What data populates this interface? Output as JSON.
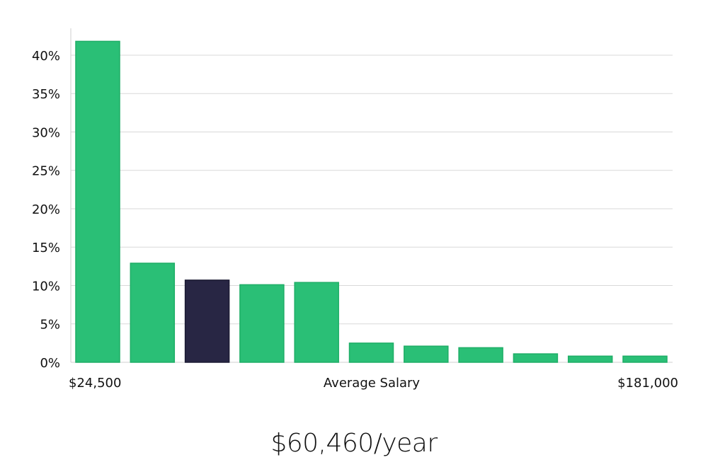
{
  "summary": {
    "salary_text": "$60,460/year"
  },
  "colors": {
    "bar": "#2abf76",
    "bar_border": "#1fae67",
    "highlight": "#282644",
    "grid": "#d9d9d9",
    "axis": "#cfcfcf"
  },
  "chart_data": {
    "type": "bar",
    "yticks": [
      "0%",
      "5%",
      "10%",
      "15%",
      "20%",
      "25%",
      "30%",
      "35%",
      "40%"
    ],
    "ylim": [
      0,
      43.5
    ],
    "values": [
      41.8,
      12.9,
      10.7,
      10.1,
      10.4,
      2.5,
      2.1,
      1.9,
      1.1,
      0.8,
      0.8
    ],
    "highlight_index": 2,
    "xlabel_left": "$24,500",
    "xlabel_center": "Average Salary",
    "xlabel_right": "$181,000",
    "grid": true
  }
}
